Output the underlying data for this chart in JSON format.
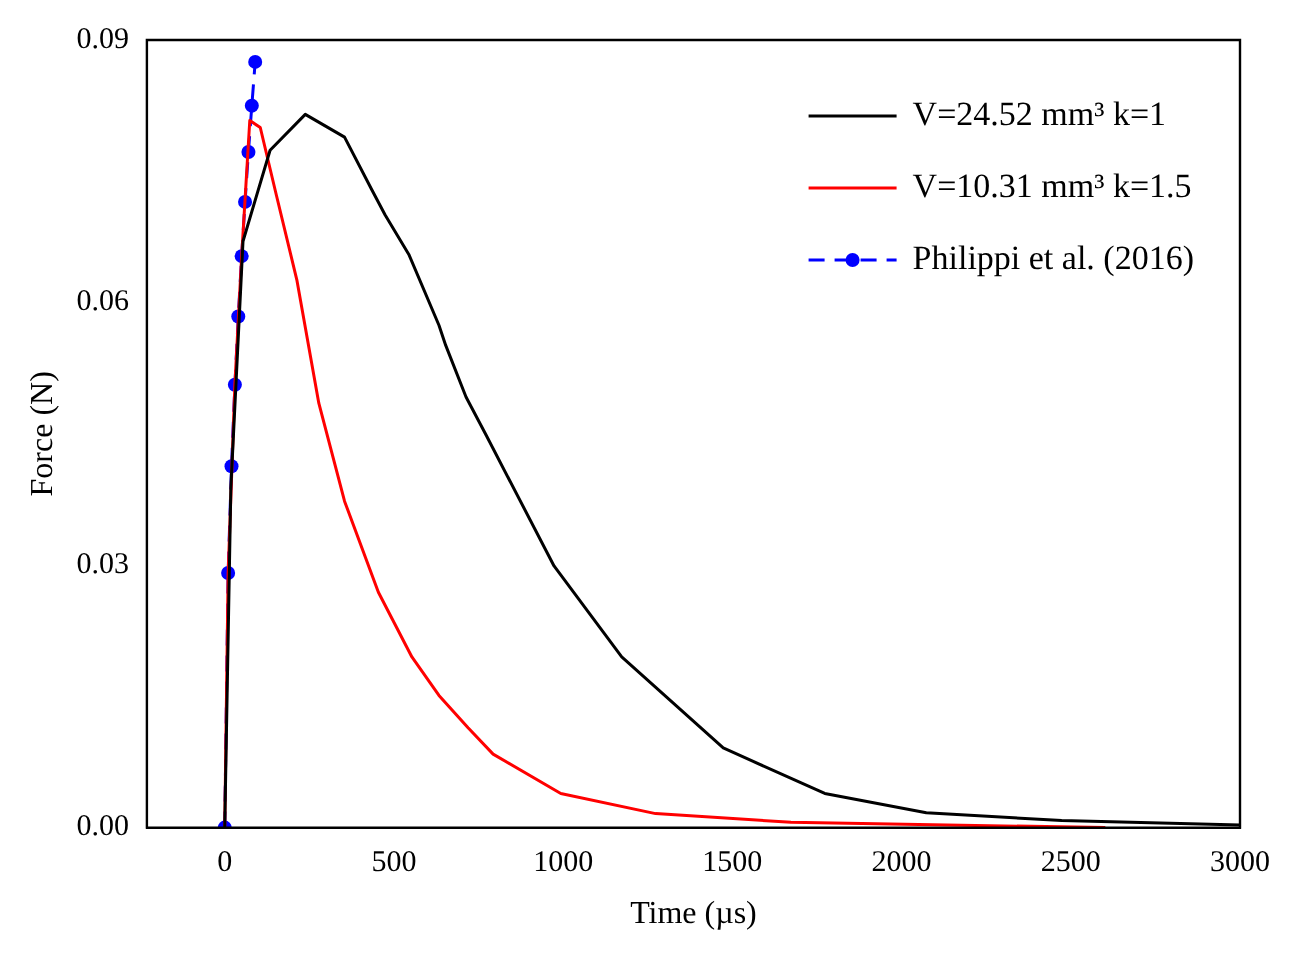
{
  "chart_data": {
    "type": "line",
    "xlabel": "Time (µs)",
    "ylabel": "Force (N)",
    "xlim": [
      -230,
      3000
    ],
    "xticks": [
      0,
      500,
      1000,
      1500,
      2000,
      2500,
      3000
    ],
    "ylim": [
      0,
      0.09
    ],
    "yticks": [
      {
        "value": 0,
        "label": "0.00"
      },
      {
        "value": 0.03,
        "label": "0.03"
      },
      {
        "value": 0.06,
        "label": "0.06"
      },
      {
        "value": 0.09,
        "label": "0.09"
      }
    ],
    "grid": false,
    "legend": "top right",
    "series": [
      {
        "name": "V=24.52 mm³ k=1",
        "color": "#000000",
        "marker": "none",
        "line_style": "solid",
        "x": [
          0,
          18,
          54,
          134,
          238,
          354,
          433,
          474,
          544,
          633,
          653,
          713,
          773,
          973,
          1173,
          1473,
          1773,
          2073,
          2473,
          3000
        ],
        "values": [
          0,
          0.0388,
          0.067,
          0.0774,
          0.0815,
          0.0789,
          0.073,
          0.07,
          0.0655,
          0.0574,
          0.0551,
          0.0492,
          0.0448,
          0.0299,
          0.0195,
          0.0091,
          0.0039,
          0.0017,
          0.0008,
          0.0003
        ]
      },
      {
        "name": "V=10.31 mm³ k=1.5",
        "color": "#ff0000",
        "marker": "none",
        "line_style": "solid",
        "x": [
          0,
          10,
          30,
          50,
          74,
          105,
          153,
          213,
          278,
          354,
          454,
          553,
          633,
          719,
          793,
          993,
          1273,
          1673,
          2602
        ],
        "values": [
          0,
          0.029,
          0.0506,
          0.0653,
          0.0808,
          0.08,
          0.0722,
          0.0626,
          0.0485,
          0.0373,
          0.0269,
          0.0195,
          0.0151,
          0.0114,
          0.0084,
          0.0039,
          0.0016,
          0.0006,
          0
        ]
      },
      {
        "name": "Philippi et al. (2016)",
        "color": "#0000ff",
        "marker": "circle",
        "line_style": "dashed",
        "x": [
          0,
          10,
          20,
          30,
          40,
          50,
          60,
          70,
          80,
          90
        ],
        "values": [
          0,
          0.0291,
          0.0413,
          0.0506,
          0.0584,
          0.0653,
          0.0715,
          0.0772,
          0.0825,
          0.0875
        ]
      }
    ]
  }
}
